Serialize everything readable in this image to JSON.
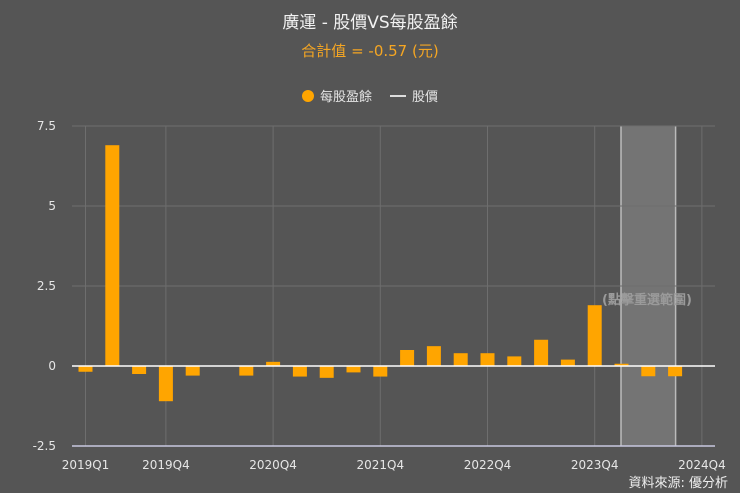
{
  "header": {
    "title": "廣運 - 股價VS每股盈餘",
    "subtitle": "合計值 = -0.57 (元)"
  },
  "source": "資料來源: 優分析",
  "selection_hint": "(點擊重選範圍)",
  "colors": {
    "bar": "#ffa500",
    "price_line": "#dddddd",
    "background": "#555555",
    "selection": "#7a7a7a"
  },
  "chart_data": {
    "type": "bar",
    "title": "廣運 - 股價VS每股盈餘",
    "legend": [
      "每股盈餘",
      "股價"
    ],
    "legend_position": "top",
    "grid": true,
    "categories": [
      "2019Q1",
      "2019Q2",
      "2019Q3",
      "2019Q4",
      "2020Q1",
      "2020Q2",
      "2020Q3",
      "2020Q4",
      "2021Q1",
      "2021Q2",
      "2021Q3",
      "2021Q4",
      "2022Q1",
      "2022Q2",
      "2022Q3",
      "2022Q4",
      "2023Q1",
      "2023Q2",
      "2023Q3",
      "2023Q4",
      "2024Q1",
      "2024Q2",
      "2024Q3",
      "2024Q4"
    ],
    "series": [
      {
        "name": "每股盈餘",
        "values": [
          -0.18,
          6.9,
          -0.25,
          -1.1,
          -0.3,
          null,
          -0.3,
          0.13,
          -0.33,
          -0.37,
          -0.2,
          -0.33,
          0.5,
          0.62,
          0.4,
          0.4,
          0.3,
          0.82,
          0.2,
          1.9,
          0.07,
          -0.32,
          -0.32,
          null
        ]
      }
    ],
    "x_tick_labels": [
      "2019Q1",
      "2019Q4",
      "2020Q4",
      "2021Q4",
      "2022Q4",
      "2023Q4",
      "2024Q4"
    ],
    "y_tick_labels": [
      "7.5",
      "5",
      "2.5",
      "0",
      "-2.5"
    ],
    "ylim": [
      -2.5,
      7.5
    ],
    "selected_range": [
      "2024Q1",
      "2024Q3"
    ]
  }
}
